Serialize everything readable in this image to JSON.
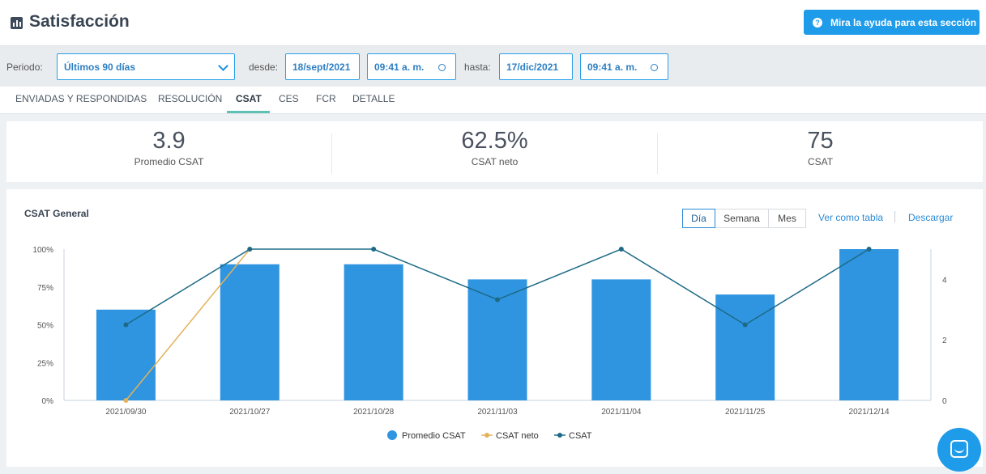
{
  "header": {
    "title": "Satisfacción",
    "help_button": "Mira la ayuda para esta sección"
  },
  "filters": {
    "period_label": "Periodo:",
    "period_value": "Últimos 90 días",
    "from_label": "desde:",
    "from_date": "18/sept/2021",
    "from_time": "09:41 a. m.",
    "to_label": "hasta:",
    "to_date": "17/dic/2021",
    "to_time": "09:41 a. m."
  },
  "tabs": [
    {
      "label": "ENVIADAS Y RESPONDIDAS"
    },
    {
      "label": "RESOLUCIÓN"
    },
    {
      "label": "CSAT",
      "active": true
    },
    {
      "label": "CES"
    },
    {
      "label": "FCR"
    },
    {
      "label": "DETALLE"
    }
  ],
  "kpis": [
    {
      "value": "3.9",
      "label": "Promedio CSAT"
    },
    {
      "value": "62.5%",
      "label": "CSAT neto"
    },
    {
      "value": "75",
      "label": "CSAT"
    }
  ],
  "card": {
    "title": "CSAT General",
    "granularity": [
      "Día",
      "Semana",
      "Mes"
    ],
    "selected_granularity": "Día",
    "view_table": "Ver como tabla",
    "download": "Descargar"
  },
  "chart_data": {
    "type": "bar",
    "title": "CSAT General",
    "categories": [
      "2021/09/30",
      "2021/10/27",
      "2021/10/28",
      "2021/11/03",
      "2021/11/04",
      "2021/11/25",
      "2021/12/14"
    ],
    "y_left_ticks": [
      "0%",
      "25%",
      "50%",
      "75%",
      "100%"
    ],
    "y_right_ticks": [
      "0",
      "2",
      "4"
    ],
    "y_left_range": [
      0,
      100
    ],
    "y_right_range": [
      0,
      5
    ],
    "series": [
      {
        "name": "Promedio CSAT",
        "type": "bar",
        "axis": "left",
        "color": "#2f95e0",
        "values": [
          60,
          90,
          90,
          80,
          80,
          70,
          100
        ]
      },
      {
        "name": "CSAT neto",
        "type": "line",
        "axis": "left",
        "color": "#e2b25a",
        "values": [
          0,
          100,
          null,
          null,
          null,
          null,
          null
        ]
      },
      {
        "name": "CSAT",
        "type": "line",
        "axis": "right",
        "color": "#1d6a86",
        "values": [
          2.5,
          5,
          5,
          3.33,
          5,
          2.5,
          5
        ]
      }
    ],
    "legend_position": "bottom-center",
    "grid": false
  },
  "colors": {
    "accent": "#1e9be9",
    "tab_active": "#5fc1b3"
  }
}
